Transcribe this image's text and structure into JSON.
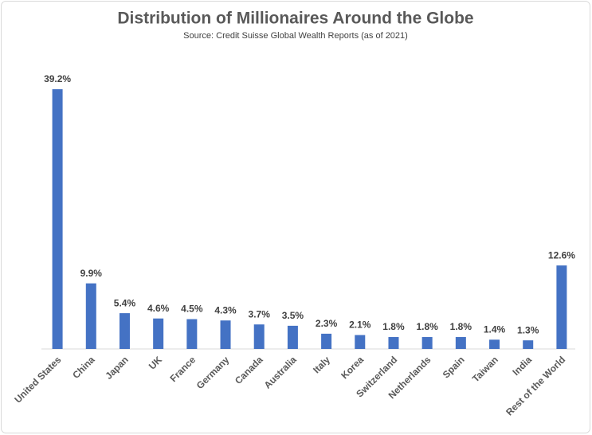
{
  "chart_data": {
    "type": "bar",
    "title": "Distribution of Millionaires Around the Globe",
    "subtitle": "Source: Credit Suisse Global Wealth Reports (as of 2021)",
    "categories": [
      "United States",
      "China",
      "Japan",
      "UK",
      "France",
      "Germany",
      "Canada",
      "Australia",
      "Italy",
      "Korea",
      "Switzerland",
      "Netherlands",
      "Spain",
      "Taiwan",
      "India",
      "Rest of the World"
    ],
    "values": [
      39.2,
      9.9,
      5.4,
      4.6,
      4.5,
      4.3,
      3.7,
      3.5,
      2.3,
      2.1,
      1.8,
      1.8,
      1.8,
      1.4,
      1.3,
      12.6
    ],
    "value_labels": [
      "39.2%",
      "9.9%",
      "5.4%",
      "4.6%",
      "4.5%",
      "4.3%",
      "3.7%",
      "3.5%",
      "2.3%",
      "2.1%",
      "1.8%",
      "1.8%",
      "1.8%",
      "1.4%",
      "1.3%",
      "12.6%"
    ],
    "color": "#4472c4"
  }
}
